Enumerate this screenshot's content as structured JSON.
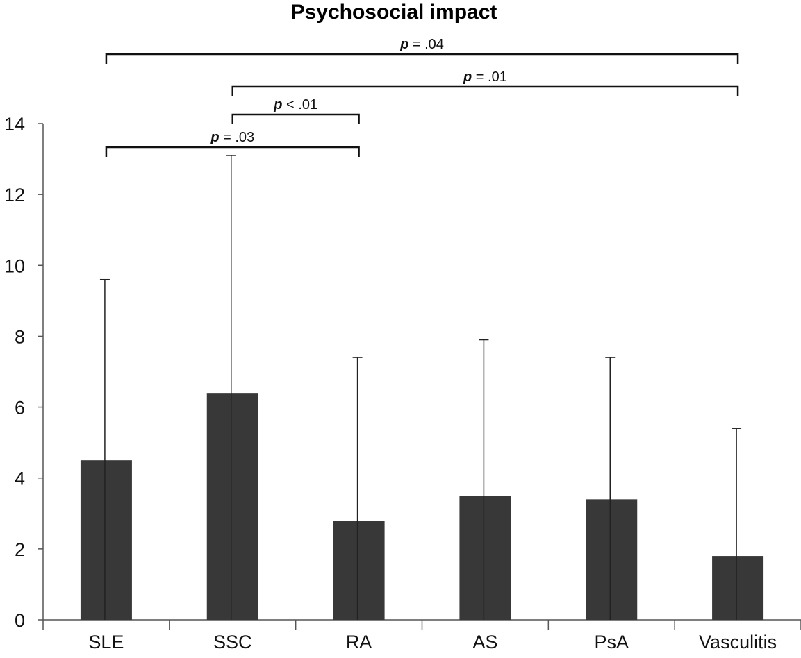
{
  "chart_data": {
    "type": "bar",
    "title": "Psychosocial impact",
    "xlabel": "",
    "ylabel": "",
    "categories": [
      "SLE",
      "SSC",
      "RA",
      "AS",
      "PsA",
      "Vasculitis"
    ],
    "values": [
      4.5,
      6.4,
      2.8,
      3.5,
      3.4,
      1.8
    ],
    "error_upper": [
      9.6,
      13.1,
      7.4,
      7.9,
      7.4,
      5.4
    ],
    "ylim": [
      0,
      14
    ],
    "yticks": [
      "0",
      "2",
      "4",
      "6",
      "8",
      "10",
      "12",
      "14"
    ],
    "grid": false,
    "bar_color": "#383838",
    "significance": [
      {
        "from": "SLE",
        "to": "RA",
        "p_symbol": "p",
        "op": "=",
        "value": ".03"
      },
      {
        "from": "SSC",
        "to": "RA",
        "p_symbol": "p",
        "op": "<",
        "value": ".01"
      },
      {
        "from": "SSC",
        "to": "Vasculitis",
        "p_symbol": "p",
        "op": "=",
        "value": ".01"
      },
      {
        "from": "SLE",
        "to": "Vasculitis",
        "p_symbol": "p",
        "op": "=",
        "value": ".04"
      }
    ]
  }
}
